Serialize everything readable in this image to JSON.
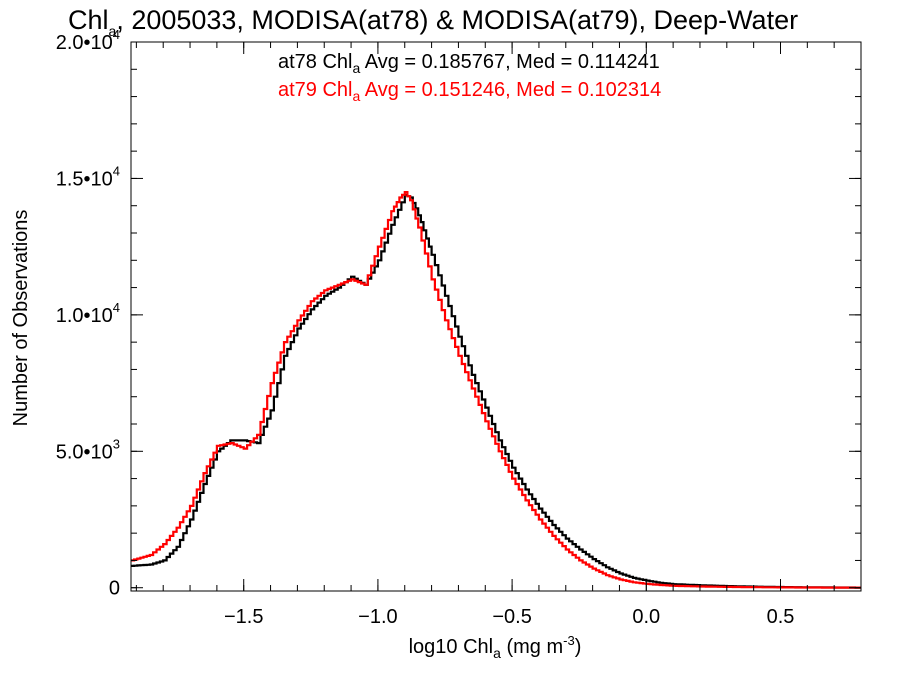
{
  "chart_data": {
    "type": "line",
    "title": {
      "prefix": "Chl",
      "sub": "a",
      "rest": ", 2005033, MODISA(at78) & MODISA(at79), Deep-Water"
    },
    "xlabel": {
      "prefix": "log10 Chl",
      "sub": "a",
      "mid": " (mg m",
      "sup": "-3",
      "end": ")"
    },
    "ylabel": "Number of Observations",
    "xlim": [
      -1.92,
      0.8
    ],
    "ylim": [
      -120,
      20000
    ],
    "x_ticks": [
      {
        "value": -1.5,
        "label": "−1.5"
      },
      {
        "value": -1.0,
        "label": "−1.0"
      },
      {
        "value": -0.5,
        "label": "−0.5"
      },
      {
        "value": 0.0,
        "label": "0.0"
      },
      {
        "value": 0.5,
        "label": "0.5"
      }
    ],
    "y_ticks": [
      {
        "value": 0,
        "mant": "0",
        "exp": ""
      },
      {
        "value": 5000,
        "mant": "5.0•10",
        "exp": "3"
      },
      {
        "value": 10000,
        "mant": "1.0•10",
        "exp": "4"
      },
      {
        "value": 15000,
        "mant": "1.5•10",
        "exp": "4"
      },
      {
        "value": 20000,
        "mant": "2.0•10",
        "exp": "4"
      }
    ],
    "x_minor_step": 0.1,
    "y_minor_step": 1000,
    "grid": false,
    "stats": [
      {
        "name": "at78",
        "pre": "at78 Chl",
        "sub": "a",
        "post": " Avg = 0.185767, Med = 0.114241",
        "color": "#000000"
      },
      {
        "name": "at79",
        "pre": "at79 Chl",
        "sub": "a",
        "post": " Avg = 0.151246, Med = 0.102314",
        "color": "#ff0000"
      }
    ],
    "series": [
      {
        "name": "at78",
        "color": "#000000",
        "x": [
          -1.92,
          -1.85,
          -1.8,
          -1.75,
          -1.7,
          -1.65,
          -1.6,
          -1.55,
          -1.5,
          -1.45,
          -1.4,
          -1.35,
          -1.3,
          -1.25,
          -1.2,
          -1.15,
          -1.1,
          -1.05,
          -1.0,
          -0.95,
          -0.9,
          -0.88,
          -0.86,
          -0.84,
          -0.8,
          -0.75,
          -0.7,
          -0.65,
          -0.6,
          -0.55,
          -0.5,
          -0.45,
          -0.4,
          -0.35,
          -0.3,
          -0.25,
          -0.2,
          -0.15,
          -0.1,
          -0.05,
          0.0,
          0.05,
          0.1,
          0.2,
          0.3,
          0.4,
          0.5,
          0.6,
          0.7,
          0.8
        ],
        "y": [
          800,
          850,
          1000,
          1500,
          2500,
          3800,
          5000,
          5400,
          5400,
          5300,
          6500,
          8500,
          9500,
          10200,
          10700,
          11000,
          11400,
          11100,
          12000,
          13300,
          14400,
          14300,
          13900,
          13400,
          12200,
          10700,
          9200,
          7800,
          6600,
          5400,
          4400,
          3600,
          2900,
          2300,
          1800,
          1400,
          1050,
          750,
          520,
          360,
          260,
          180,
          130,
          90,
          60,
          40,
          25,
          15,
          10,
          5
        ]
      },
      {
        "name": "at79",
        "color": "#ff0000",
        "x": [
          -1.92,
          -1.85,
          -1.8,
          -1.75,
          -1.7,
          -1.65,
          -1.6,
          -1.55,
          -1.5,
          -1.45,
          -1.4,
          -1.35,
          -1.3,
          -1.25,
          -1.2,
          -1.15,
          -1.1,
          -1.05,
          -1.0,
          -0.95,
          -0.92,
          -0.9,
          -0.88,
          -0.85,
          -0.8,
          -0.75,
          -0.7,
          -0.65,
          -0.6,
          -0.55,
          -0.5,
          -0.45,
          -0.4,
          -0.35,
          -0.3,
          -0.25,
          -0.2,
          -0.15,
          -0.1,
          -0.05,
          0.0,
          0.05,
          0.1,
          0.2,
          0.3,
          0.4,
          0.5,
          0.6,
          0.7,
          0.8
        ],
        "y": [
          1000,
          1200,
          1600,
          2200,
          3000,
          4200,
          5200,
          5300,
          5100,
          5600,
          7500,
          9000,
          9800,
          10500,
          10900,
          11100,
          11300,
          11100,
          12500,
          13800,
          14300,
          14500,
          14200,
          13200,
          11300,
          9800,
          8500,
          7300,
          6100,
          5000,
          4000,
          3200,
          2500,
          1900,
          1400,
          1000,
          700,
          460,
          300,
          200,
          140,
          100,
          70,
          45,
          30,
          20,
          12,
          8,
          5,
          3
        ]
      }
    ]
  }
}
